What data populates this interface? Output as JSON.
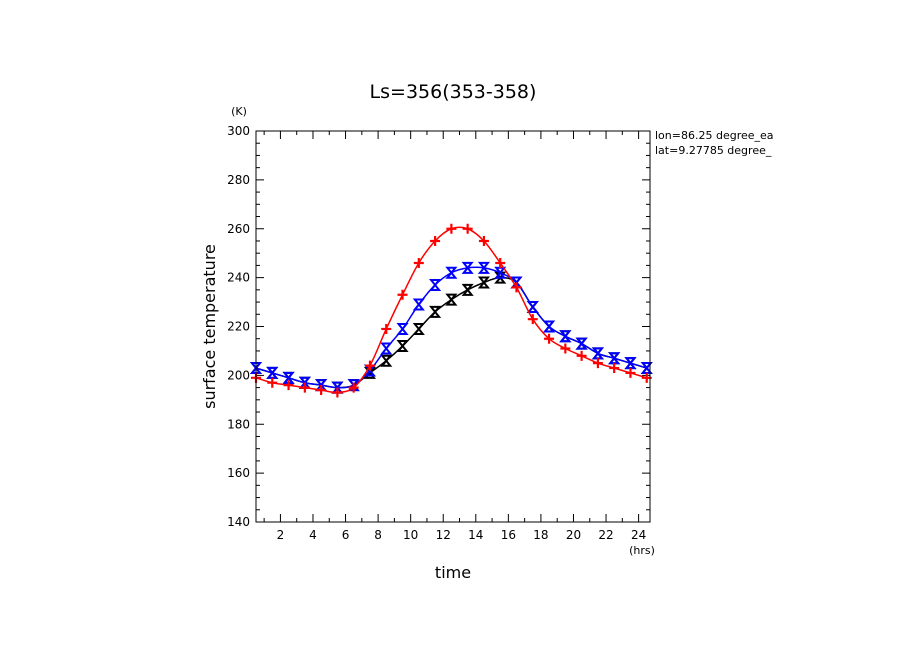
{
  "chart_data": {
    "type": "line",
    "title": "Ls=356(353-358)",
    "xlabel": "time",
    "ylabel": "surface temperature",
    "x_unit": "(hrs)",
    "y_unit": "(K)",
    "xlim": [
      0.5,
      24.7
    ],
    "ylim": [
      140,
      300
    ],
    "xticks": [
      2,
      4,
      6,
      8,
      10,
      12,
      14,
      16,
      18,
      20,
      22,
      24
    ],
    "yticks": [
      140,
      160,
      180,
      200,
      220,
      240,
      260,
      280,
      300
    ],
    "annotations": [
      "lon=86.25 degree_ea",
      "lat=9.27785 degree_"
    ],
    "x": [
      0.5,
      1.5,
      2.5,
      3.5,
      4.5,
      5.5,
      6.5,
      7.5,
      8.5,
      9.5,
      10.5,
      11.5,
      12.5,
      13.5,
      14.5,
      15.5,
      16.5,
      17.5,
      18.5,
      19.5,
      20.5,
      21.5,
      22.5,
      23.5,
      24.5
    ],
    "series": [
      {
        "color": "#000000",
        "marker": "hourglass",
        "values": [
          203,
          201,
          199,
          197,
          196,
          195,
          196,
          201,
          206,
          212,
          219,
          226,
          231,
          235,
          238,
          240,
          238,
          228,
          220,
          216,
          213,
          209,
          207,
          205,
          203
        ]
      },
      {
        "color": "#0000ff",
        "marker": "hourglass",
        "values": [
          203,
          201,
          199,
          197,
          196,
          195,
          196,
          202,
          211,
          219,
          229,
          237,
          242,
          244,
          244,
          242,
          238,
          228,
          220,
          216,
          213,
          209,
          207,
          205,
          203
        ]
      },
      {
        "color": "#ff0000",
        "marker": "plus",
        "values": [
          199,
          197,
          196,
          195,
          194,
          193,
          195,
          204,
          219,
          233,
          246,
          255,
          260,
          260,
          255,
          246,
          236,
          223,
          215,
          211,
          208,
          205,
          203,
          201,
          199
        ]
      }
    ]
  }
}
